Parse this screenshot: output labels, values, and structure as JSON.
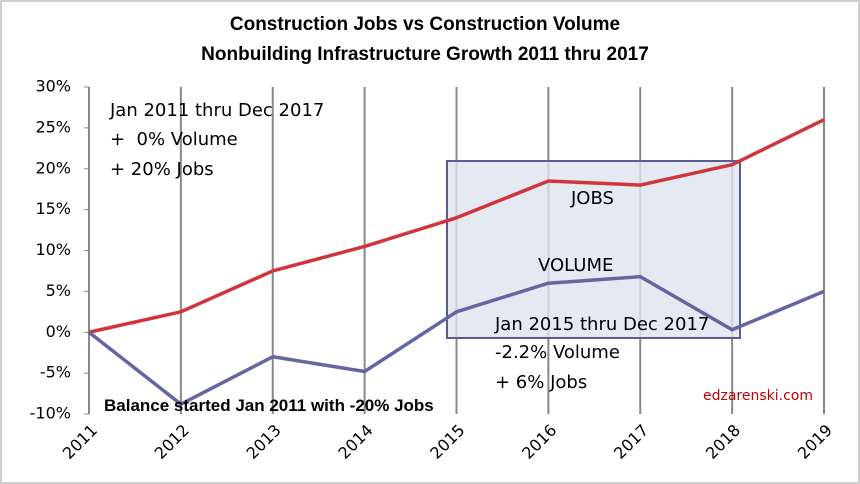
{
  "chart_data": {
    "type": "line",
    "title": "Construction Jobs vs Construction Volume",
    "subtitle": "Nonbuilding Infrastructure Growth 2011 thru 2017",
    "x": [
      2011,
      2012,
      2013,
      2014,
      2015,
      2016,
      2017,
      2018,
      2019
    ],
    "series": [
      {
        "name": "JOBS",
        "color": "#d0353c",
        "values": [
          0,
          2.5,
          7.5,
          10.5,
          14,
          18.5,
          18,
          20.5,
          26
        ]
      },
      {
        "name": "VOLUME",
        "color": "#6366a0",
        "values": [
          0,
          -8.8,
          -3,
          -4.8,
          2.5,
          6,
          6.8,
          0.3,
          5
        ]
      }
    ],
    "xlim": [
      2011,
      2019
    ],
    "xticks": [
      2011,
      2012,
      2013,
      2014,
      2015,
      2016,
      2017,
      2018,
      2019
    ],
    "ylim": [
      -10,
      30
    ],
    "yticks": [
      {
        "value": 30,
        "label": "30%"
      },
      {
        "value": 25,
        "label": "25%"
      },
      {
        "value": 20,
        "label": "20%"
      },
      {
        "value": 15,
        "label": "15%"
      },
      {
        "value": 10,
        "label": "10%"
      },
      {
        "value": 5,
        "label": "5%"
      },
      {
        "value": 0,
        "label": "0%"
      },
      {
        "value": -5,
        "label": "-5%"
      },
      {
        "value": -10,
        "label": "-10%"
      }
    ],
    "grid": true,
    "annotations": [
      "Jan 2011 thru Dec 2017",
      "+  0% Volume",
      "+ 20% Jobs",
      "JOBS",
      "VOLUME",
      "Jan 2015 thru Dec 2017",
      "-2.2% Volume",
      "+ 6% Jobs",
      "Balance started Jan 2011 with -20% Jobs",
      "edzarenski.com"
    ]
  }
}
